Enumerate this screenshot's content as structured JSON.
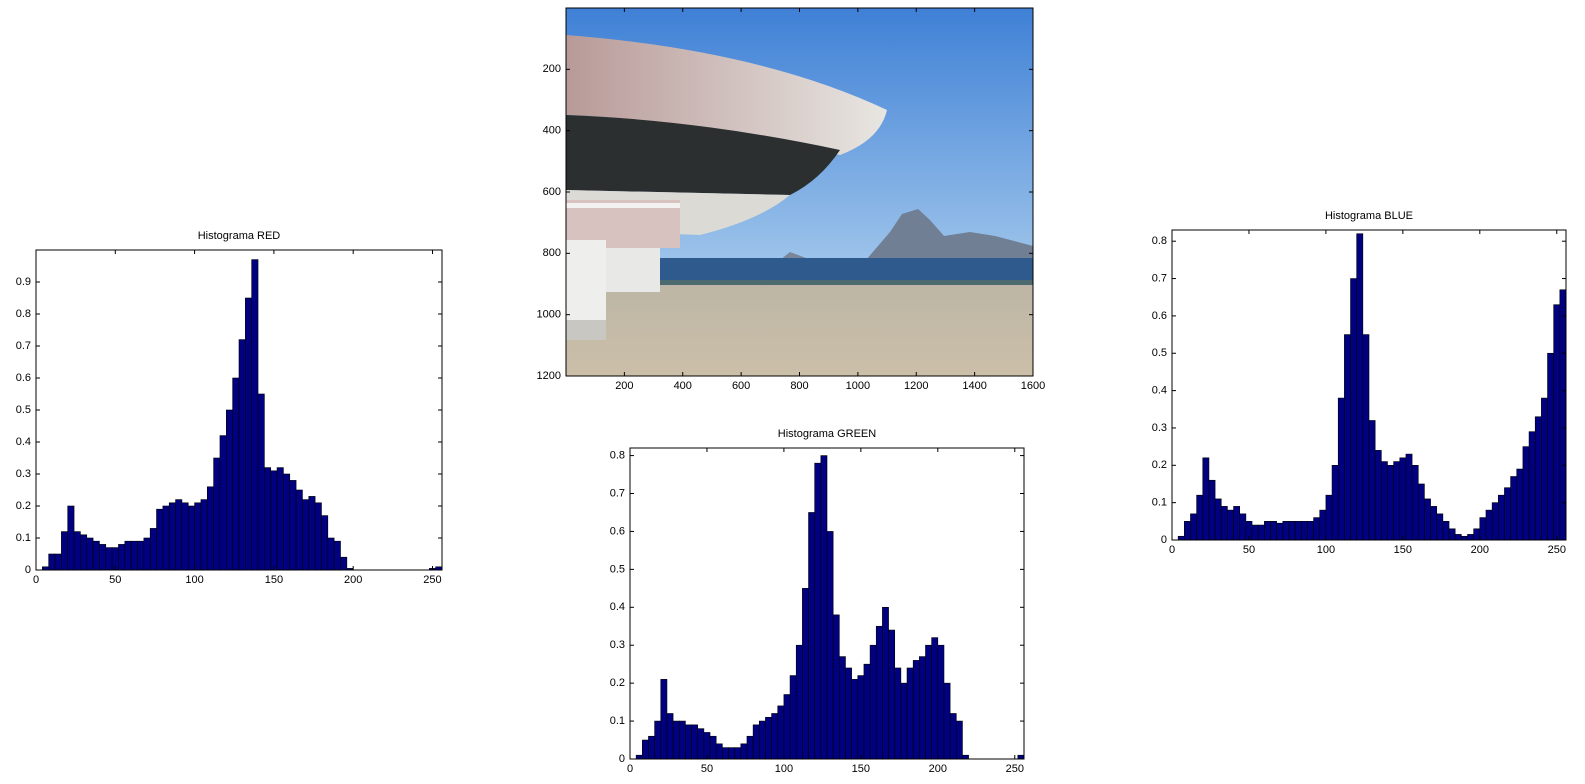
{
  "chart_data": [
    {
      "type": "image",
      "xlim": [
        0,
        1600
      ],
      "ylim": [
        1200,
        0
      ],
      "xticks": [
        200,
        400,
        600,
        800,
        1000,
        1200,
        1400,
        1600
      ],
      "yticks": [
        200,
        400,
        600,
        800,
        1000,
        1200
      ]
    },
    {
      "type": "histogram",
      "title": "Histograma RED",
      "color": "#000080",
      "edge_color": "#000000",
      "xlim": [
        0,
        256
      ],
      "ylim": [
        0,
        1
      ],
      "xticks": [
        0,
        50,
        100,
        150,
        200,
        250
      ],
      "yticks": [
        0,
        0.1,
        0.2,
        0.3,
        0.4,
        0.5,
        0.6,
        0.7,
        0.8,
        0.9
      ],
      "bins": [
        0,
        4,
        8,
        12,
        16,
        20,
        24,
        28,
        32,
        36,
        40,
        44,
        48,
        52,
        56,
        60,
        64,
        68,
        72,
        76,
        80,
        84,
        88,
        92,
        96,
        100,
        104,
        108,
        112,
        116,
        120,
        124,
        128,
        132,
        136,
        140,
        144,
        148,
        152,
        156,
        160,
        164,
        168,
        172,
        176,
        180,
        184,
        188,
        192,
        196,
        200,
        204,
        208,
        212,
        216,
        220,
        224,
        228,
        232,
        236,
        240,
        244,
        248,
        252,
        256
      ],
      "values": [
        0,
        0.01,
        0.05,
        0.05,
        0.12,
        0.2,
        0.12,
        0.11,
        0.1,
        0.09,
        0.08,
        0.07,
        0.07,
        0.08,
        0.09,
        0.09,
        0.09,
        0.1,
        0.13,
        0.19,
        0.2,
        0.21,
        0.22,
        0.21,
        0.2,
        0.21,
        0.22,
        0.26,
        0.35,
        0.42,
        0.5,
        0.6,
        0.72,
        0.85,
        0.97,
        0.55,
        0.32,
        0.31,
        0.32,
        0.3,
        0.28,
        0.25,
        0.22,
        0.23,
        0.21,
        0.17,
        0.1,
        0.09,
        0.04,
        0.005,
        0,
        0,
        0,
        0,
        0,
        0,
        0,
        0,
        0,
        0,
        0,
        0,
        0.005,
        0.01
      ]
    },
    {
      "type": "histogram",
      "title": "Histograma GREEN",
      "color": "#000080",
      "edge_color": "#000000",
      "xlim": [
        0,
        256
      ],
      "ylim": [
        0,
        0.82
      ],
      "xticks": [
        0,
        50,
        100,
        150,
        200,
        250
      ],
      "yticks": [
        0,
        0.1,
        0.2,
        0.3,
        0.4,
        0.5,
        0.6,
        0.7,
        0.8
      ],
      "bins": [
        0,
        4,
        8,
        12,
        16,
        20,
        24,
        28,
        32,
        36,
        40,
        44,
        48,
        52,
        56,
        60,
        64,
        68,
        72,
        76,
        80,
        84,
        88,
        92,
        96,
        100,
        104,
        108,
        112,
        116,
        120,
        124,
        128,
        132,
        136,
        140,
        144,
        148,
        152,
        156,
        160,
        164,
        168,
        172,
        176,
        180,
        184,
        188,
        192,
        196,
        200,
        204,
        208,
        212,
        216,
        220,
        224,
        228,
        232,
        236,
        240,
        244,
        248,
        252,
        256
      ],
      "values": [
        0,
        0.01,
        0.05,
        0.06,
        0.1,
        0.21,
        0.12,
        0.1,
        0.1,
        0.09,
        0.09,
        0.08,
        0.07,
        0.06,
        0.04,
        0.03,
        0.03,
        0.03,
        0.04,
        0.06,
        0.09,
        0.1,
        0.11,
        0.12,
        0.14,
        0.17,
        0.22,
        0.3,
        0.45,
        0.65,
        0.78,
        0.8,
        0.6,
        0.38,
        0.27,
        0.24,
        0.21,
        0.22,
        0.25,
        0.3,
        0.35,
        0.4,
        0.34,
        0.24,
        0.2,
        0.24,
        0.26,
        0.27,
        0.3,
        0.32,
        0.3,
        0.2,
        0.12,
        0.1,
        0.01,
        0,
        0,
        0,
        0,
        0,
        0,
        0,
        0,
        0.01
      ]
    },
    {
      "type": "histogram",
      "title": "Histograma BLUE",
      "color": "#000080",
      "edge_color": "#000000",
      "xlim": [
        0,
        256
      ],
      "ylim": [
        0,
        0.83
      ],
      "xticks": [
        0,
        50,
        100,
        150,
        200,
        250
      ],
      "yticks": [
        0,
        0.1,
        0.2,
        0.3,
        0.4,
        0.5,
        0.6,
        0.7,
        0.8
      ],
      "bins": [
        0,
        4,
        8,
        12,
        16,
        20,
        24,
        28,
        32,
        36,
        40,
        44,
        48,
        52,
        56,
        60,
        64,
        68,
        72,
        76,
        80,
        84,
        88,
        92,
        96,
        100,
        104,
        108,
        112,
        116,
        120,
        124,
        128,
        132,
        136,
        140,
        144,
        148,
        152,
        156,
        160,
        164,
        168,
        172,
        176,
        180,
        184,
        188,
        192,
        196,
        200,
        204,
        208,
        212,
        216,
        220,
        224,
        228,
        232,
        236,
        240,
        244,
        248,
        252,
        256
      ],
      "values": [
        0,
        0.01,
        0.05,
        0.07,
        0.12,
        0.22,
        0.16,
        0.11,
        0.09,
        0.08,
        0.09,
        0.07,
        0.05,
        0.04,
        0.04,
        0.05,
        0.05,
        0.045,
        0.05,
        0.05,
        0.05,
        0.05,
        0.05,
        0.06,
        0.08,
        0.12,
        0.2,
        0.38,
        0.55,
        0.7,
        0.82,
        0.55,
        0.32,
        0.24,
        0.21,
        0.2,
        0.21,
        0.22,
        0.23,
        0.2,
        0.15,
        0.11,
        0.09,
        0.07,
        0.05,
        0.03,
        0.015,
        0.01,
        0.015,
        0.03,
        0.06,
        0.08,
        0.1,
        0.12,
        0.14,
        0.17,
        0.19,
        0.25,
        0.29,
        0.33,
        0.38,
        0.5,
        0.63,
        0.67
      ]
    }
  ]
}
